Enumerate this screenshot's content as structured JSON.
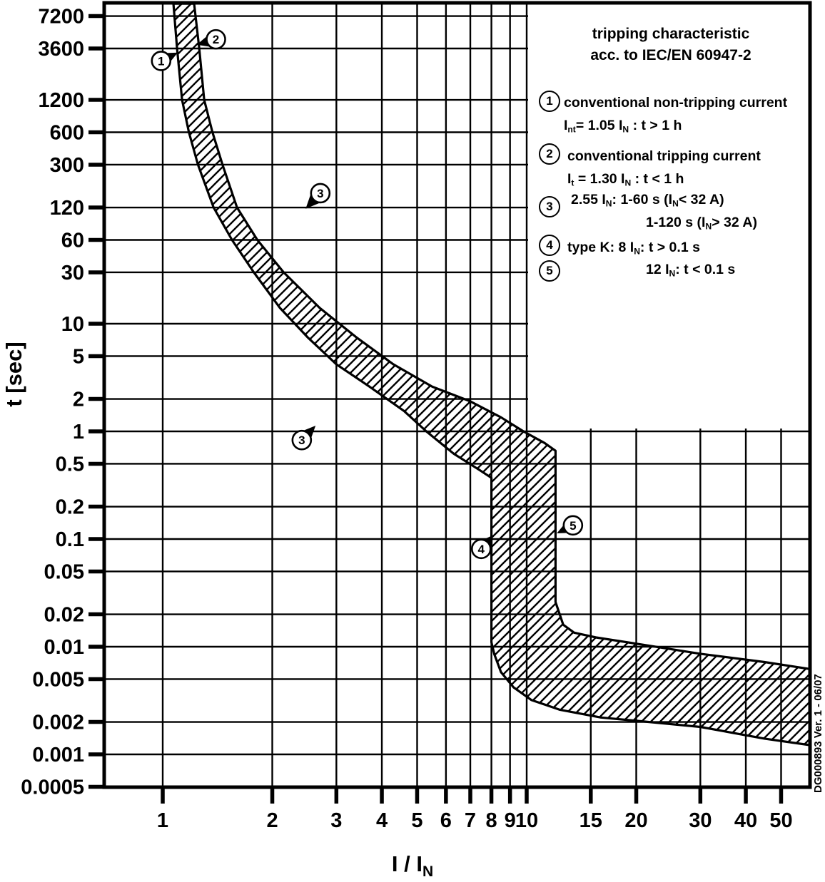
{
  "side_note": "DG000893 Ver. 1 - 06/07",
  "legend": {
    "title_line1": "tripping characteristic",
    "title_line2": "acc. to IEC/EN 60947-2",
    "items": [
      {
        "num": "1",
        "line1": "conventional non-tripping current",
        "line2": "I_{nt}= 1.05 I_{N} : t > 1 h"
      },
      {
        "num": "2",
        "line1": "conventional tripping current",
        "line2": "I_{t} = 1.30 I_{N} : t < 1 h"
      },
      {
        "num": "3",
        "line1": "2.55 I_{N}:  1-60 s (I_{N}< 32 A)",
        "line2": "1-120 s (I_{N}> 32 A)"
      },
      {
        "num": "4",
        "line1": "type K:   8 I_{N}: t > 0.1 s",
        "line2": ""
      },
      {
        "num": "5",
        "line1": "12 I_{N}: t < 0.1 s",
        "line2": ""
      }
    ]
  },
  "chart_data": {
    "type": "area",
    "scale": "log-log",
    "title": "tripping characteristic acc. to IEC/EN 60947-2",
    "xlabel": "I / I_{N}",
    "ylabel": "t [sec]",
    "xlim": [
      0.7,
      60
    ],
    "ylim": [
      0.0005,
      9500
    ],
    "grid": true,
    "x_ticks": [
      1,
      2,
      3,
      4,
      5,
      6,
      7,
      8,
      9,
      10,
      15,
      20,
      30,
      40,
      50
    ],
    "x_tick_labels": [
      "1",
      "2",
      "3",
      "4",
      "5",
      "6",
      "7",
      "8",
      "9",
      "10",
      "15",
      "20",
      "30",
      "40",
      "50"
    ],
    "y_ticks": [
      7200,
      3600,
      1200,
      600,
      300,
      120,
      60,
      30,
      10,
      5,
      2,
      1,
      0.5,
      0.2,
      0.1,
      0.05,
      0.02,
      0.01,
      0.005,
      0.002,
      0.001,
      0.0005
    ],
    "y_tick_labels": [
      "7200",
      "3600",
      "1200",
      "600",
      "300",
      "120",
      "60",
      "30",
      "10",
      "5",
      "2",
      "1",
      "0.5",
      "0.2",
      "0.1",
      "0.05",
      "0.02",
      "0.01",
      "0.005",
      "0.002",
      "0.001",
      "0.0005"
    ],
    "band": {
      "name": "tripping tolerance band (hatched)",
      "lower_boundary": [
        [
          1.07,
          9400
        ],
        [
          1.095,
          3600
        ],
        [
          1.13,
          1200
        ],
        [
          1.18,
          600
        ],
        [
          1.25,
          300
        ],
        [
          1.38,
          120
        ],
        [
          1.55,
          60
        ],
        [
          1.78,
          30
        ],
        [
          2.1,
          14
        ],
        [
          2.5,
          7.5
        ],
        [
          3.0,
          4.2
        ],
        [
          3.7,
          2.6
        ],
        [
          4.6,
          1.55
        ],
        [
          5.3,
          1.0
        ],
        [
          6.3,
          0.62
        ],
        [
          7.4,
          0.44
        ],
        [
          8.0,
          0.37
        ],
        [
          8.0,
          0.011
        ],
        [
          8.15,
          0.0085
        ],
        [
          8.5,
          0.0058
        ],
        [
          9.2,
          0.0042
        ],
        [
          10.3,
          0.0032
        ],
        [
          12.3,
          0.0026
        ],
        [
          16,
          0.0022
        ],
        [
          20,
          0.00205
        ],
        [
          30,
          0.0018
        ],
        [
          45,
          0.0014
        ],
        [
          60,
          0.00122
        ]
      ],
      "upper_boundary": [
        [
          1.22,
          9400
        ],
        [
          1.26,
          3600
        ],
        [
          1.3,
          1200
        ],
        [
          1.37,
          600
        ],
        [
          1.46,
          300
        ],
        [
          1.6,
          120
        ],
        [
          1.82,
          60
        ],
        [
          2.15,
          30
        ],
        [
          2.7,
          14
        ],
        [
          3.4,
          7.5
        ],
        [
          4.3,
          4.2
        ],
        [
          5.5,
          2.6
        ],
        [
          7.0,
          1.9
        ],
        [
          8.5,
          1.35
        ],
        [
          9.8,
          1.0
        ],
        [
          11.2,
          0.78
        ],
        [
          12.0,
          0.66
        ],
        [
          12.0,
          0.026
        ],
        [
          12.6,
          0.016
        ],
        [
          13.5,
          0.0135
        ],
        [
          15.5,
          0.0122
        ],
        [
          21,
          0.0104
        ],
        [
          30,
          0.0086
        ],
        [
          45,
          0.0072
        ],
        [
          60,
          0.0062
        ]
      ]
    },
    "annotations": [
      {
        "label": "1",
        "circle": [
          0.99,
          2760
        ],
        "arrow_tip": [
          1.1,
          3300
        ]
      },
      {
        "label": "2",
        "circle": [
          1.4,
          4380
        ],
        "arrow_tip": [
          1.24,
          3900
        ]
      },
      {
        "label": "3",
        "circle": [
          2.71,
          163
        ],
        "arrow_tip": [
          2.47,
          117
        ]
      },
      {
        "label": "3",
        "circle": [
          2.41,
          0.83
        ],
        "arrow_tip": [
          2.63,
          1.13
        ]
      },
      {
        "label": "4",
        "circle": [
          7.5,
          0.081
        ],
        "arrow_tip": [
          8.1,
          0.109
        ]
      },
      {
        "label": "5",
        "circle": [
          13.4,
          0.134
        ],
        "arrow_tip": [
          12.1,
          0.113
        ]
      }
    ],
    "colors": {
      "ink": "#000000",
      "background": "#ffffff"
    }
  }
}
